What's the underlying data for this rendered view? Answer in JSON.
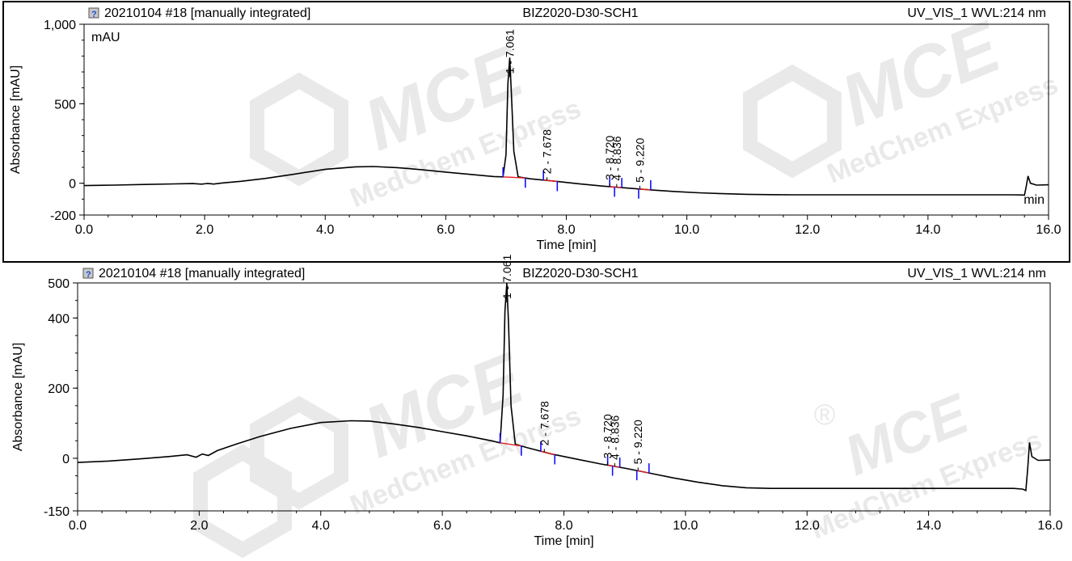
{
  "watermark": {
    "brand": "MCE",
    "sub": "MedChem Express",
    "registered": "®",
    "color": "#e9e9e9"
  },
  "chart_data": [
    {
      "type": "line",
      "header": {
        "sample": "20210104 #18 [manually integrated]",
        "method": "BIZ2020-D30-SCH1",
        "channel": "UV_VIS_1 WVL:214 nm"
      },
      "xlabel": "Time [min]",
      "ylabel": "Absorbance [mAU]",
      "unit_label": "mAU",
      "end_label": "min",
      "xlim": [
        0,
        16
      ],
      "ylim": [
        -200,
        1000
      ],
      "xticks": [
        0,
        2,
        4,
        6,
        8,
        10,
        12,
        14,
        16
      ],
      "xtick_labels": [
        "0.0",
        "2.0",
        "4.0",
        "6.0",
        "8.0",
        "10.0",
        "12.0",
        "14.0",
        "16.0"
      ],
      "yticks": [
        -200,
        0,
        500,
        1000
      ],
      "ytick_labels": [
        "-200",
        "0",
        "500",
        "1,000"
      ],
      "series": [
        {
          "x": [
            0,
            0.5,
            1.0,
            1.5,
            1.8,
            1.95,
            2.05,
            2.15,
            2.3,
            2.6,
            3.0,
            3.5,
            4.0,
            4.5,
            4.8,
            5.2,
            5.6,
            6.0,
            6.4,
            6.8,
            6.95,
            7.0,
            7.03,
            7.061,
            7.09,
            7.13,
            7.2,
            7.4,
            7.8,
            8.2,
            8.6,
            9.0,
            9.4,
            9.8,
            10.2,
            10.6,
            11.0,
            11.4,
            11.8,
            12.2,
            12.6,
            13.0,
            13.4,
            13.8,
            14.2,
            14.6,
            15.0,
            15.4,
            15.55,
            15.6,
            15.63,
            15.66,
            15.7,
            15.8,
            16.0
          ],
          "y": [
            -15,
            -12,
            -8,
            -4,
            -2,
            -6,
            -1,
            -5,
            2,
            12,
            30,
            58,
            88,
            103,
            105,
            98,
            85,
            70,
            56,
            42,
            40,
            180,
            620,
            790,
            560,
            200,
            40,
            28,
            13,
            -3,
            -18,
            -30,
            -42,
            -52,
            -60,
            -66,
            -70,
            -72,
            -73,
            -73,
            -73,
            -73,
            -73,
            -73,
            -73,
            -73,
            -73,
            -73,
            -74,
            -75,
            -20,
            45,
            0,
            -12,
            -10
          ]
        }
      ],
      "peaks": [
        {
          "label": "1 - 7.061",
          "t": 7.061
        },
        {
          "label": "2 - 7.678",
          "t": 7.678
        },
        {
          "label": "3 - 8.720",
          "t": 8.72
        },
        {
          "label": "4 - 8.836",
          "t": 8.836
        },
        {
          "label": "5 - 9.220",
          "t": 9.22
        }
      ],
      "integration_marks": [
        6.95,
        7.32,
        7.62,
        7.85,
        8.72,
        8.8,
        8.92,
        9.2,
        9.4
      ],
      "baseline_color": "#e02020",
      "mark_color": "#1010ff",
      "trace_color": "#000000"
    },
    {
      "type": "line",
      "header": {
        "sample": "20210104 #18 [manually integrated]",
        "method": "BIZ2020-D30-SCH1",
        "channel": "UV_VIS_1 WVL:214 nm"
      },
      "xlabel": "Time [min]",
      "ylabel": "Absorbance [mAU]",
      "xlim": [
        0,
        16
      ],
      "ylim": [
        -150,
        500
      ],
      "xticks": [
        0,
        2,
        4,
        6,
        8,
        10,
        12,
        14,
        16
      ],
      "xtick_labels": [
        "0.0",
        "2.0",
        "4.0",
        "6.0",
        "8.0",
        "10.0",
        "12.0",
        "14.0",
        "16.0"
      ],
      "yticks": [
        -150,
        0,
        200,
        400,
        500
      ],
      "ytick_labels": [
        "-150",
        "0",
        "200",
        "400",
        "500"
      ],
      "series": [
        {
          "x": [
            0,
            0.5,
            1.0,
            1.5,
            1.8,
            1.95,
            2.05,
            2.15,
            2.3,
            2.6,
            3.0,
            3.5,
            4.0,
            4.5,
            4.8,
            5.2,
            5.6,
            6.0,
            6.4,
            6.8,
            6.95,
            7.0,
            7.03,
            7.061,
            7.09,
            7.13,
            7.2,
            7.4,
            7.8,
            8.2,
            8.6,
            9.0,
            9.4,
            9.8,
            10.2,
            10.6,
            11.0,
            11.4,
            11.8,
            12.2,
            12.6,
            13.0,
            13.4,
            13.8,
            14.2,
            14.6,
            15.0,
            15.4,
            15.55,
            15.6,
            15.63,
            15.66,
            15.7,
            15.8,
            16.0
          ],
          "y": [
            -12,
            -8,
            -2,
            5,
            10,
            3,
            12,
            8,
            22,
            40,
            62,
            85,
            102,
            107,
            106,
            98,
            88,
            76,
            64,
            50,
            44,
            180,
            420,
            500,
            380,
            150,
            40,
            30,
            12,
            -2,
            -16,
            -28,
            -42,
            -56,
            -68,
            -78,
            -84,
            -86,
            -86,
            -86,
            -86,
            -86,
            -86,
            -86,
            -86,
            -86,
            -86,
            -86,
            -88,
            -92,
            -30,
            45,
            5,
            -6,
            -5
          ]
        }
      ],
      "peaks": [
        {
          "label": "1 - 7.061",
          "t": 7.061
        },
        {
          "label": "2 - 7.678",
          "t": 7.678
        },
        {
          "label": "3 - 8.720",
          "t": 8.72
        },
        {
          "label": "4 - 8.836",
          "t": 8.836
        },
        {
          "label": "5 - 9.220",
          "t": 9.22
        }
      ],
      "integration_marks": [
        6.95,
        7.3,
        7.62,
        7.85,
        8.72,
        8.8,
        8.92,
        9.2,
        9.4
      ],
      "baseline_color": "#e02020",
      "mark_color": "#1010ff",
      "trace_color": "#000000"
    }
  ]
}
